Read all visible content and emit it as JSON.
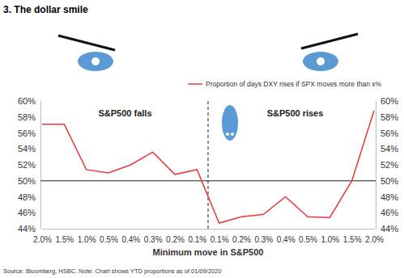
{
  "chart_data": {
    "type": "line",
    "title": "3. The dollar smile",
    "x_label": "Minimum move in S&P500",
    "categories": [
      "2.0%",
      "1.5%",
      "1.0%",
      "0.5%",
      "0.4%",
      "0.3%",
      "0.2%",
      "0.1%",
      "0.1%",
      "0.2%",
      "0.3%",
      "0.4%",
      "0.5%",
      "1.0%",
      "1.5%",
      "2.0%"
    ],
    "series": [
      {
        "name": "Proportion of days DXY rises if SPX moves more than x%",
        "color": "#e8383d",
        "line_style": "solid",
        "values": [
          57.1,
          57.1,
          51.4,
          51.0,
          52.0,
          53.6,
          50.8,
          51.4,
          44.7,
          45.5,
          45.8,
          48.0,
          45.5,
          45.4,
          50.0,
          58.8
        ]
      }
    ],
    "ylim": [
      44,
      60
    ],
    "yticks": [
      {
        "value": 44,
        "label": "44%"
      },
      {
        "value": 46,
        "label": "46%"
      },
      {
        "value": 48,
        "label": "48%"
      },
      {
        "value": 50,
        "label": "50%"
      },
      {
        "value": 52,
        "label": "52%"
      },
      {
        "value": 54,
        "label": "54%"
      },
      {
        "value": 56,
        "label": "56%"
      },
      {
        "value": 58,
        "label": "58%"
      },
      {
        "value": 60,
        "label": "60%"
      }
    ],
    "y2lim": [
      44,
      60
    ],
    "y2ticks": [
      {
        "value": 44,
        "label": "44%"
      },
      {
        "value": 46,
        "label": "46%"
      },
      {
        "value": 48,
        "label": "48%"
      },
      {
        "value": 50,
        "label": "50%"
      },
      {
        "value": 52,
        "label": "52%"
      },
      {
        "value": 54,
        "label": "54%"
      },
      {
        "value": 56,
        "label": "56%"
      },
      {
        "value": 58,
        "label": "58%"
      },
      {
        "value": 60,
        "label": "60%"
      }
    ],
    "reference_lines": [
      50
    ],
    "annotations": [
      "S&P500 falls",
      "S&P500 rises"
    ],
    "source": "Source: Bloomberg, HSBC. Note: Chart shows YTD proportions as of 01/09/2020",
    "legend": "top",
    "grid": false
  }
}
